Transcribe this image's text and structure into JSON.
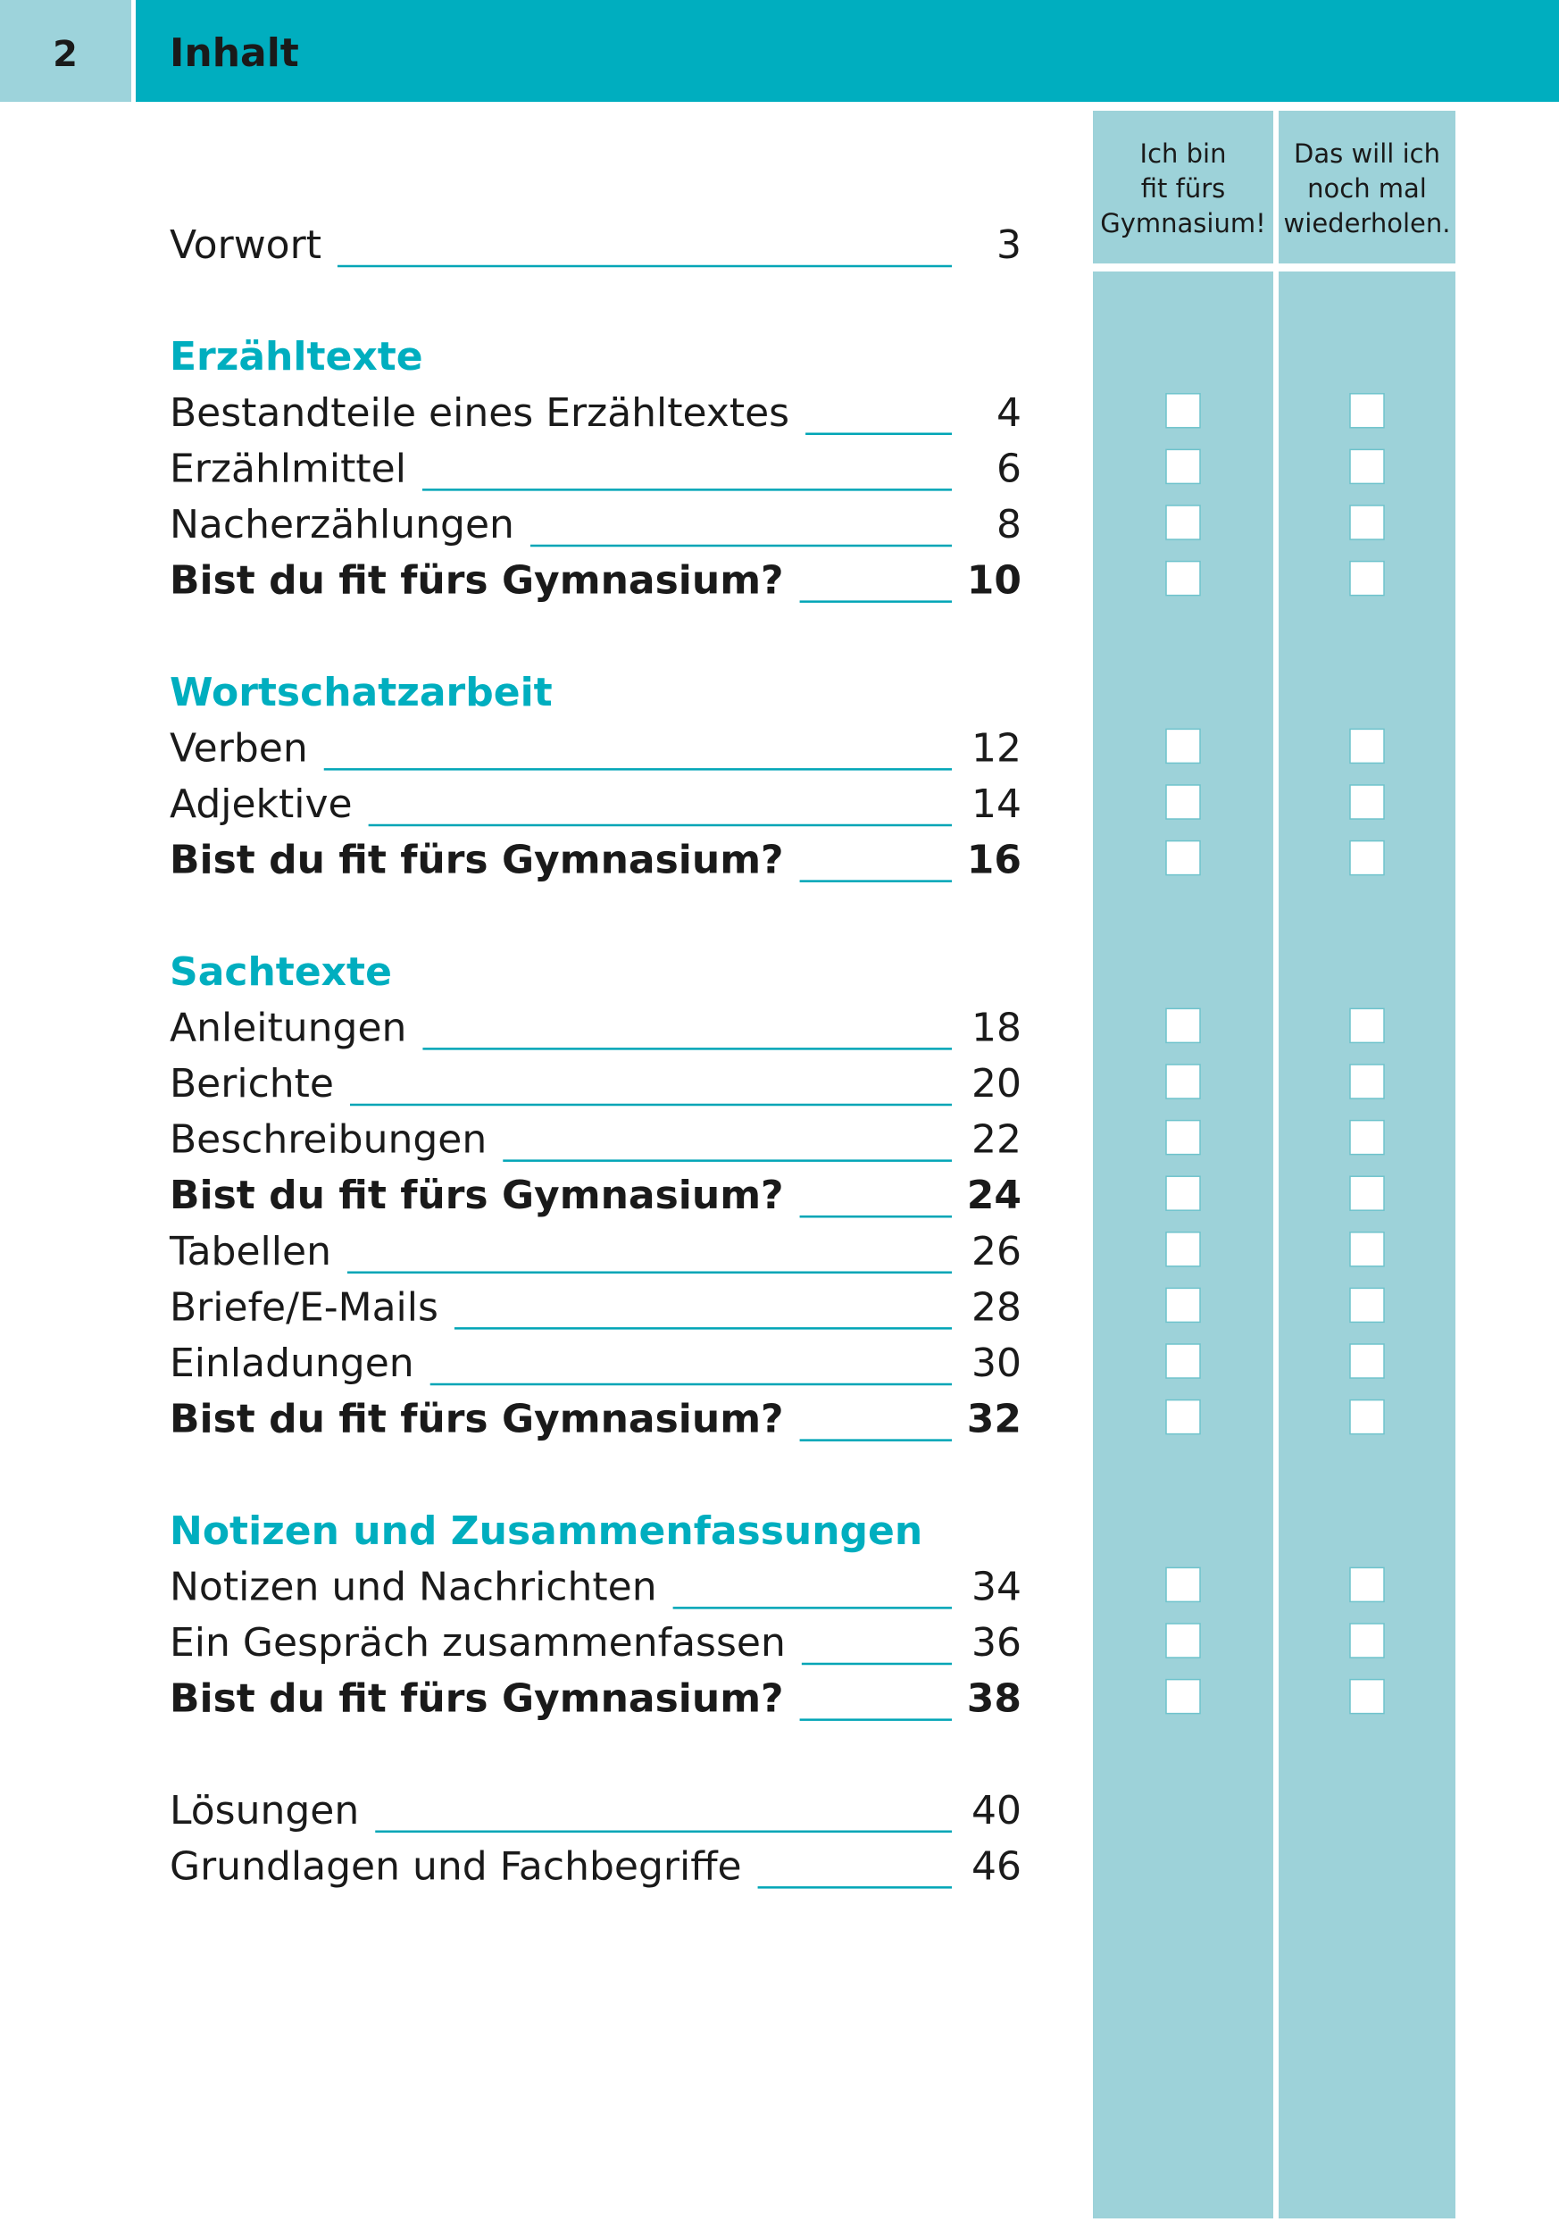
{
  "header": {
    "page_number": "2",
    "title": "Inhalt"
  },
  "columns": [
    {
      "lines": [
        "Ich bin",
        "fit fürs",
        "Gymnasium!"
      ]
    },
    {
      "lines": [
        "Das will ich",
        "noch mal",
        "wiederholen."
      ]
    }
  ],
  "intro": [
    {
      "title": "Vorwort",
      "page": "3"
    }
  ],
  "sections": [
    {
      "heading": "Erzähltexte",
      "entries": [
        {
          "title": "Bestandteile eines Erzähltextes",
          "page": "4"
        },
        {
          "title": "Erzählmittel",
          "page": "6"
        },
        {
          "title": "Nacherzählungen",
          "page": "8"
        },
        {
          "title": "Bist du fit fürs Gymnasium?",
          "page": "10",
          "bold": true
        }
      ]
    },
    {
      "heading": "Wortschatzarbeit",
      "entries": [
        {
          "title": "Verben",
          "page": "12"
        },
        {
          "title": "Adjektive",
          "page": "14"
        },
        {
          "title": "Bist du fit fürs Gymnasium?",
          "page": "16",
          "bold": true
        }
      ]
    },
    {
      "heading": "Sachtexte",
      "entries": [
        {
          "title": "Anleitungen",
          "page": "18"
        },
        {
          "title": "Berichte",
          "page": "20"
        },
        {
          "title": "Beschreibungen",
          "page": "22"
        },
        {
          "title": "Bist du fit fürs Gymnasium?",
          "page": "24",
          "bold": true
        },
        {
          "title": "Tabellen",
          "page": "26"
        },
        {
          "title": "Briefe/E-Mails",
          "page": "28"
        },
        {
          "title": "Einladungen",
          "page": "30"
        },
        {
          "title": "Bist du fit fürs Gymnasium?",
          "page": "32",
          "bold": true
        }
      ]
    },
    {
      "heading": "Notizen und Zusammenfassungen",
      "entries": [
        {
          "title": "Notizen und Nachrichten",
          "page": "34"
        },
        {
          "title": "Ein Gespräch zusammenfassen",
          "page": "36"
        },
        {
          "title": "Bist du fit fürs Gymnasium?",
          "page": "38",
          "bold": true
        }
      ]
    }
  ],
  "appendix": [
    {
      "title": "Lösungen",
      "page": "40"
    },
    {
      "title": "Grundlagen und Fachbegriffe",
      "page": "46"
    }
  ]
}
